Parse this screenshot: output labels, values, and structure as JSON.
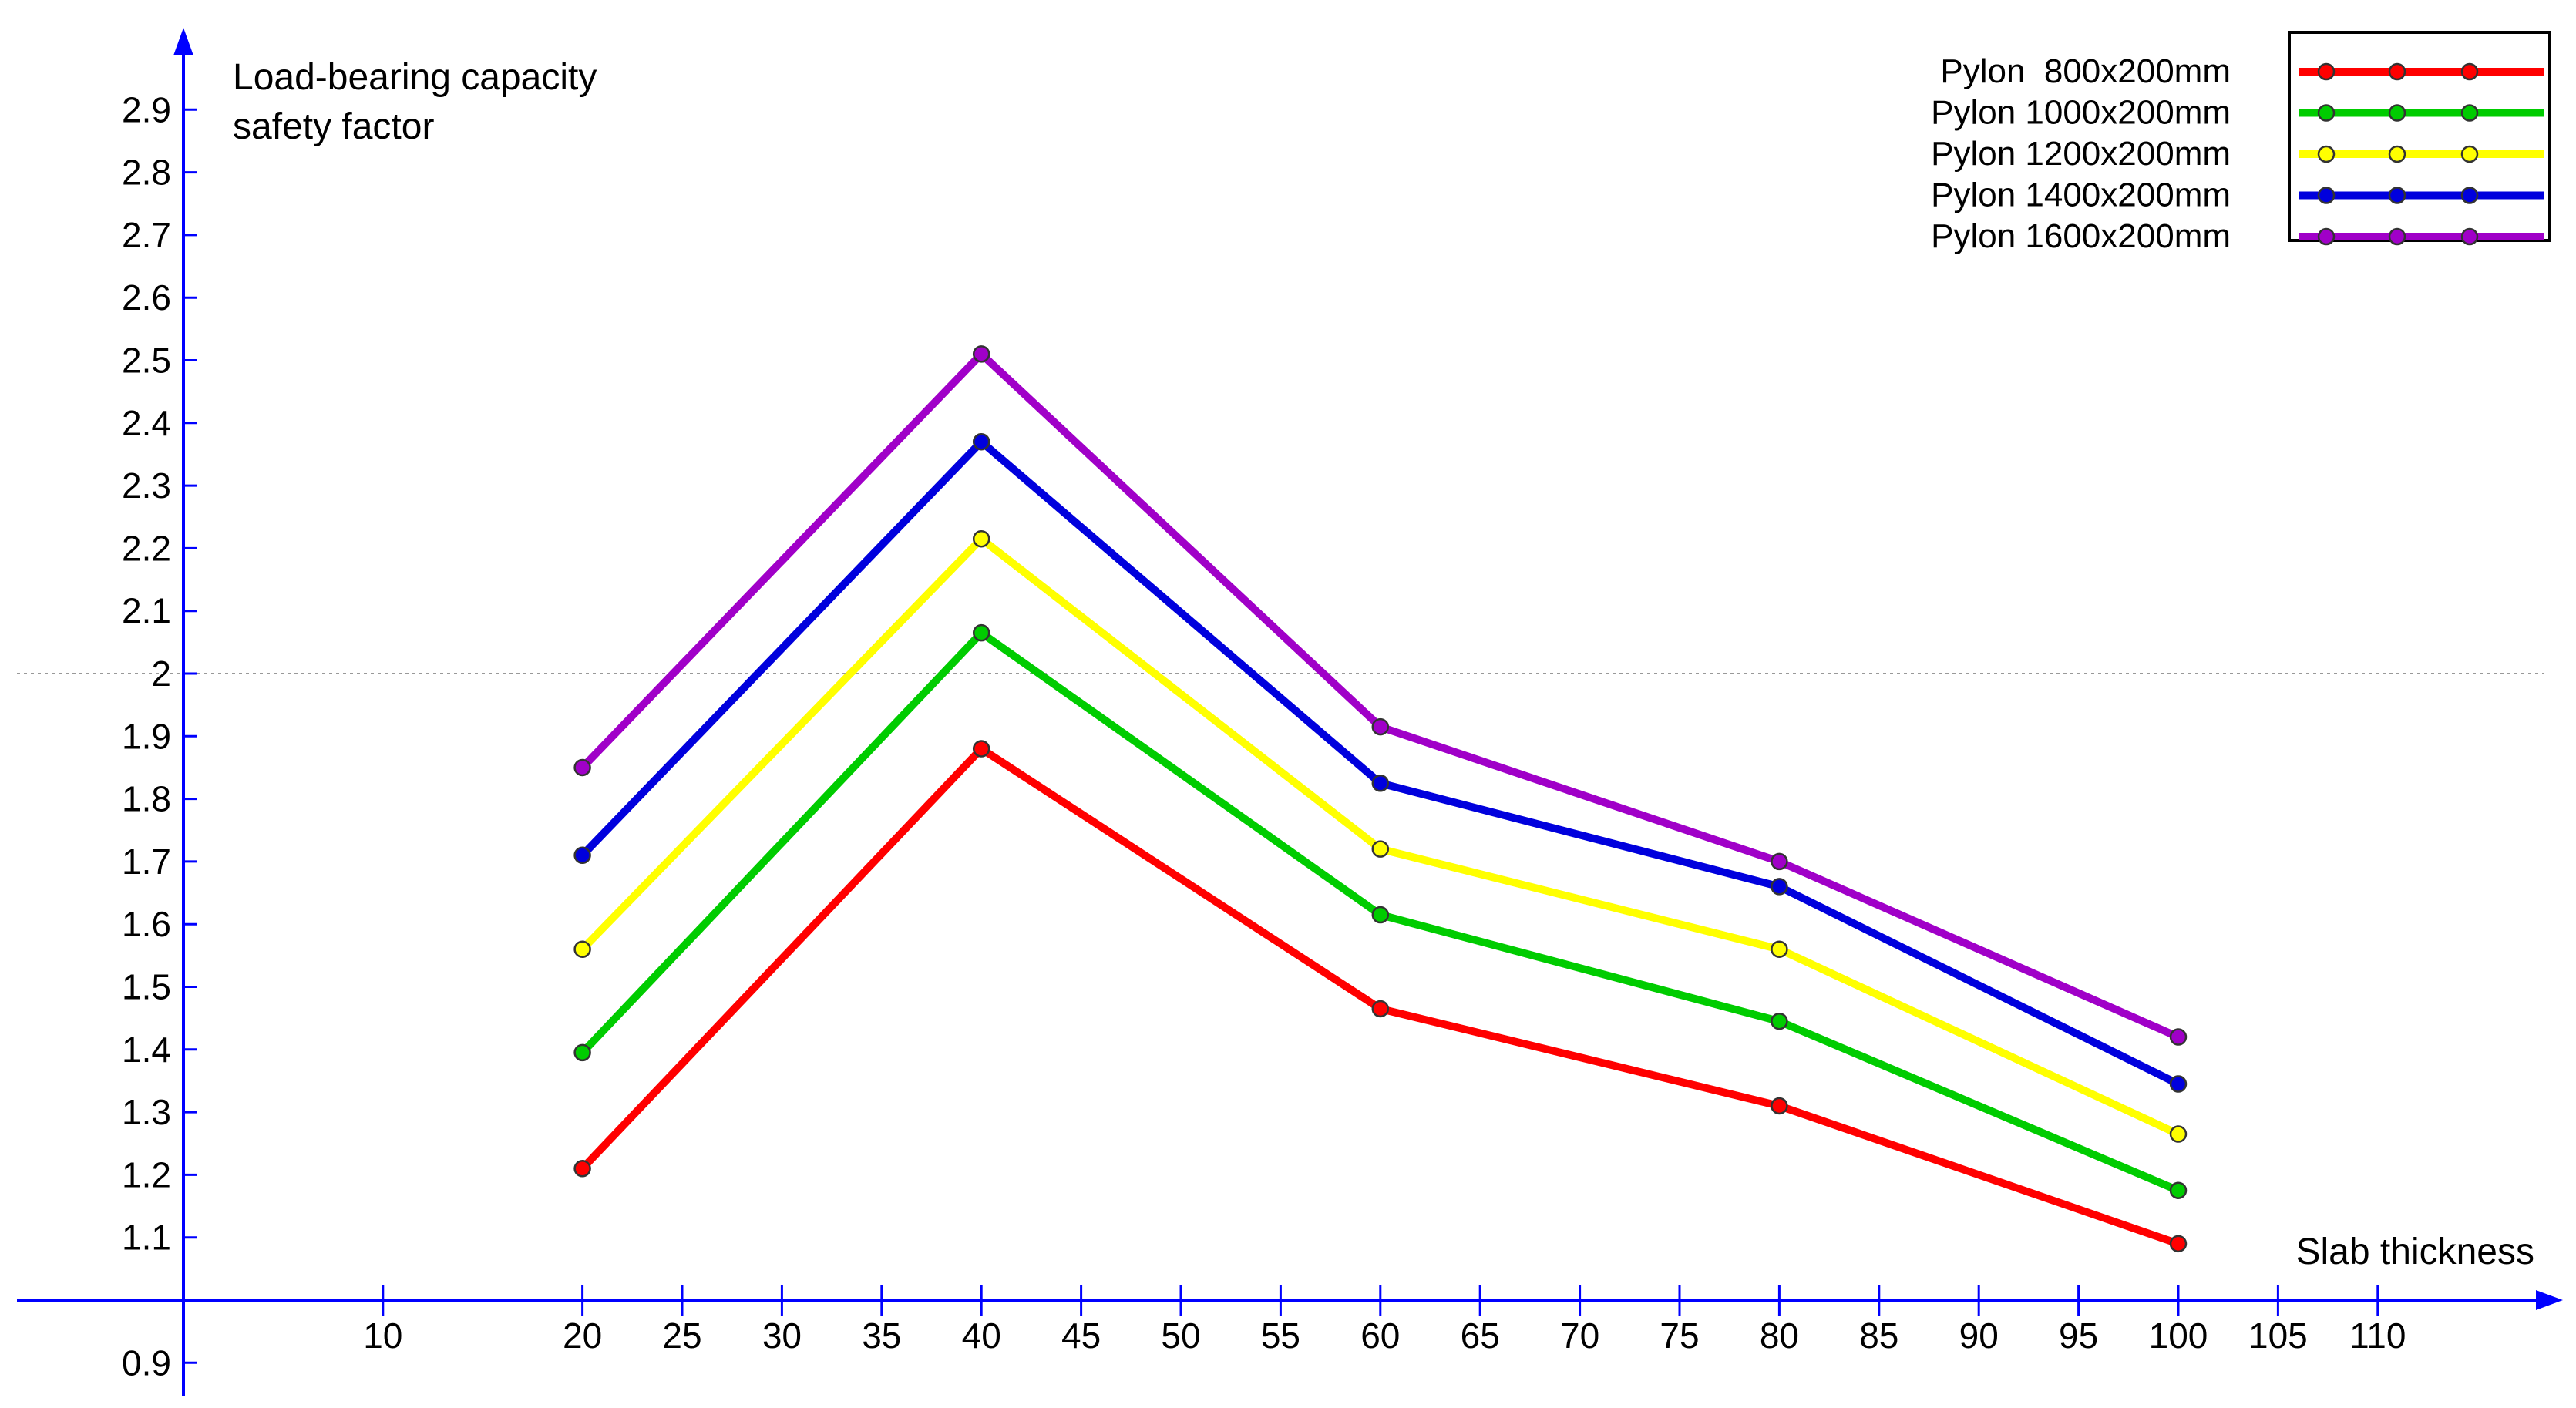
{
  "chart_data": {
    "type": "line",
    "ylabel_lines": [
      "Load-bearing capacity",
      "safety factor"
    ],
    "xlabel": "Slab thickness",
    "x_ticks": [
      10,
      20,
      25,
      30,
      35,
      40,
      45,
      50,
      55,
      60,
      65,
      70,
      75,
      80,
      85,
      90,
      95,
      100,
      105,
      110
    ],
    "y_ticks": [
      "0.9",
      "1.1",
      "1.2",
      "1.3",
      "1.4",
      "1.5",
      "1.6",
      "1.7",
      "1.8",
      "1.9",
      "2",
      "2.1",
      "2.2",
      "2.3",
      "2.4",
      "2.5",
      "2.6",
      "2.7",
      "2.8",
      "2.9"
    ],
    "x_range": [
      5,
      115
    ],
    "y_range": [
      0.885,
      3.0
    ],
    "reference_line": {
      "y": 2.0,
      "style": "dotted",
      "color": "#999999"
    },
    "x": [
      20,
      40,
      60,
      80,
      100
    ],
    "series": [
      {
        "name": "Pylon  800x200mm",
        "color": "#ff0000",
        "values": [
          1.21,
          1.88,
          1.465,
          1.31,
          1.09
        ]
      },
      {
        "name": "Pylon 1000x200mm",
        "color": "#00cc00",
        "values": [
          1.395,
          2.065,
          1.615,
          1.445,
          1.175
        ]
      },
      {
        "name": "Pylon 1200x200mm",
        "color": "#ffff00",
        "values": [
          1.56,
          2.215,
          1.72,
          1.56,
          1.265
        ]
      },
      {
        "name": "Pylon 1400x200mm",
        "color": "#0000dd",
        "values": [
          1.71,
          2.37,
          1.825,
          1.66,
          1.345
        ]
      },
      {
        "name": "Pylon 1600x200mm",
        "color": "#a000c8",
        "values": [
          1.85,
          2.51,
          1.915,
          1.7,
          1.42
        ]
      }
    ],
    "legend": {
      "position": "top-right",
      "frame": true
    },
    "grid": false
  }
}
